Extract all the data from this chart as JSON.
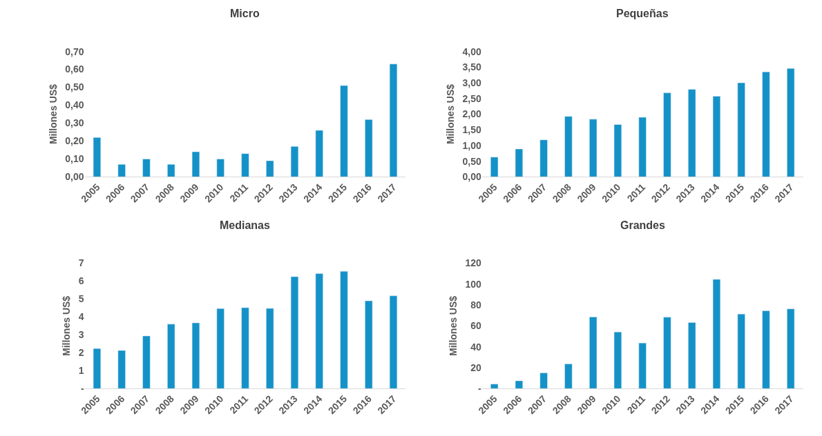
{
  "chart_data": [
    {
      "type": "bar",
      "title": "Micro",
      "ylabel": "Millones US$",
      "categories": [
        "2005",
        "2006",
        "2007",
        "2008",
        "2009",
        "2010",
        "2011",
        "2012",
        "2013",
        "2014",
        "2015",
        "2016",
        "2017"
      ],
      "color": "#1492c8",
      "values": [
        0.22,
        0.07,
        0.1,
        0.07,
        0.14,
        0.1,
        0.13,
        0.09,
        0.17,
        0.26,
        0.51,
        0.32,
        0.63
      ],
      "ylim": [
        0,
        0.7
      ],
      "yticks": [
        {
          "value": 0,
          "label": "0,00"
        },
        {
          "value": 0.1,
          "label": "0,10"
        },
        {
          "value": 0.2,
          "label": "0,20"
        },
        {
          "value": 0.3,
          "label": "0,30"
        },
        {
          "value": 0.4,
          "label": "0,40"
        },
        {
          "value": 0.5,
          "label": "0,50"
        },
        {
          "value": 0.6,
          "label": "0,60"
        },
        {
          "value": 0.7,
          "label": "0,70"
        }
      ],
      "grid": false
    },
    {
      "type": "bar",
      "title": "Pequeñas",
      "ylabel": "Millones US$",
      "categories": [
        "2005",
        "2006",
        "2007",
        "2008",
        "2009",
        "2010",
        "2011",
        "2012",
        "2013",
        "2014",
        "2015",
        "2016",
        "2017"
      ],
      "color": "#1492c8",
      "values": [
        0.63,
        0.89,
        1.18,
        1.93,
        1.84,
        1.67,
        1.9,
        2.68,
        2.79,
        2.57,
        3.0,
        3.35,
        3.46
      ],
      "ylim": [
        0,
        4
      ],
      "yticks": [
        {
          "value": 0,
          "label": "0,00"
        },
        {
          "value": 0.5,
          "label": "0,50"
        },
        {
          "value": 1,
          "label": "1,00"
        },
        {
          "value": 1.5,
          "label": "1,50"
        },
        {
          "value": 2,
          "label": "2,00"
        },
        {
          "value": 2.5,
          "label": "2,50"
        },
        {
          "value": 3,
          "label": "3,00"
        },
        {
          "value": 3.5,
          "label": "3,50"
        },
        {
          "value": 4,
          "label": "4,00"
        }
      ],
      "grid": false
    },
    {
      "type": "bar",
      "title": "Medianas",
      "ylabel": "Millones US$",
      "categories": [
        "2005",
        "2006",
        "2007",
        "2008",
        "2009",
        "2010",
        "2011",
        "2012",
        "2013",
        "2014",
        "2015",
        "2016",
        "2017"
      ],
      "color": "#1492c8",
      "values": [
        2.24,
        2.13,
        2.94,
        3.6,
        3.67,
        4.47,
        4.52,
        4.48,
        6.25,
        6.42,
        6.55,
        4.9,
        5.18
      ],
      "ylim": [
        0,
        7
      ],
      "yticks": [
        {
          "value": 0,
          "label": "-"
        },
        1,
        2,
        3,
        4,
        5,
        6,
        7
      ],
      "grid": false
    },
    {
      "type": "bar",
      "title": "Grandes",
      "ylabel": "Millones US$",
      "categories": [
        "2005",
        "2006",
        "2007",
        "2008",
        "2009",
        "2010",
        "2011",
        "2012",
        "2013",
        "2014",
        "2015",
        "2016",
        "2017"
      ],
      "color": "#1492c8",
      "values": [
        4.4,
        7.5,
        15,
        23.6,
        68.6,
        54.2,
        43.7,
        68.4,
        63.3,
        104.6,
        71.4,
        74.5,
        76.3
      ],
      "ylim": [
        0,
        120
      ],
      "yticks": [
        {
          "value": 0,
          "label": "-"
        },
        20,
        40,
        60,
        80,
        100,
        120
      ],
      "grid": false
    }
  ]
}
